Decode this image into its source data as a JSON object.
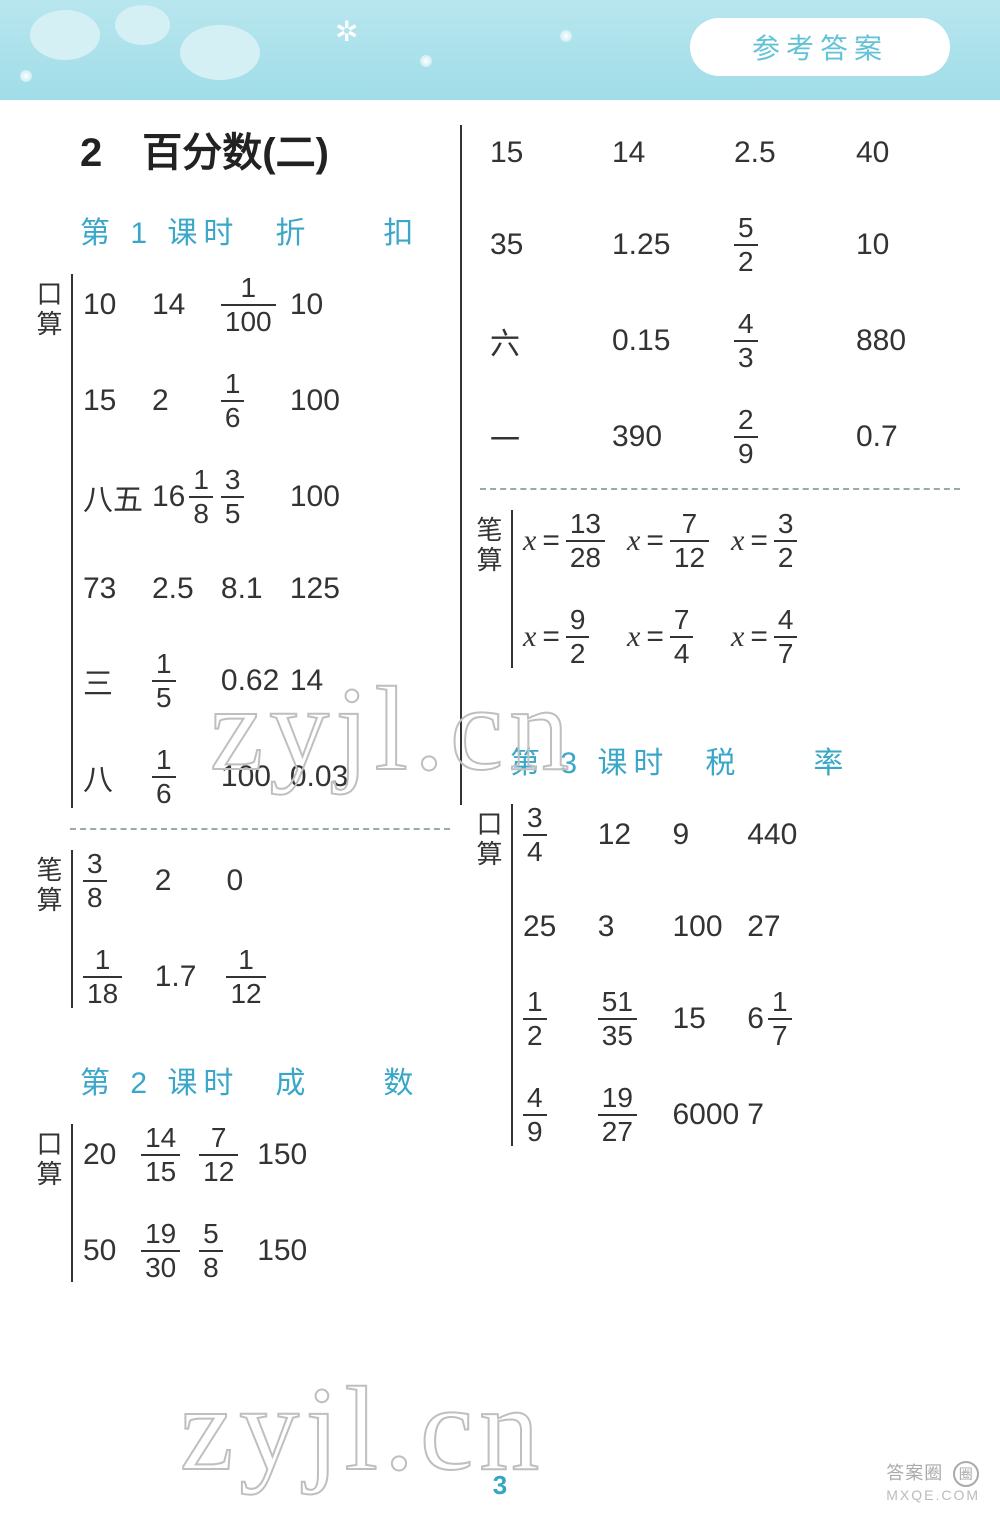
{
  "header": {
    "pill_label": "参考答案",
    "band_bg_top": "#b8e6ee",
    "band_bg_bottom": "#a0dde8",
    "pill_bg": "#ffffff",
    "pill_text_color": "#61c3d5"
  },
  "chapter_title": "2　百分数(二)",
  "labels": {
    "kousuan": "口算",
    "bisuan": "笔算"
  },
  "lesson1": {
    "title": "第 1 课时　折　　扣",
    "kousuan_rows": [
      [
        "10",
        "14",
        {
          "frac": [
            1,
            100
          ]
        },
        "10"
      ],
      [
        "15",
        "2",
        {
          "frac": [
            1,
            6
          ]
        },
        "100"
      ],
      [
        "八五",
        {
          "mixed": [
            16,
            1,
            8
          ]
        },
        {
          "frac": [
            3,
            5
          ]
        },
        "100"
      ],
      [
        "73",
        "2.5",
        "8.1",
        "125"
      ],
      [
        "三",
        {
          "frac": [
            1,
            5
          ]
        },
        "0.62",
        "14"
      ],
      [
        "八",
        {
          "frac": [
            1,
            6
          ]
        },
        "100",
        "0.03"
      ]
    ],
    "bisuan_rows": [
      [
        {
          "frac": [
            3,
            8
          ]
        },
        "2",
        "0"
      ],
      [
        {
          "frac": [
            1,
            18
          ]
        },
        "1.7",
        {
          "frac": [
            1,
            12
          ]
        }
      ]
    ]
  },
  "lesson2": {
    "title": "第 2 课时　成　　数",
    "kousuan_left_rows": [
      [
        "20",
        {
          "frac": [
            14,
            15
          ]
        },
        {
          "frac": [
            7,
            12
          ]
        },
        "150"
      ],
      [
        "50",
        {
          "frac": [
            19,
            30
          ]
        },
        {
          "frac": [
            5,
            8
          ]
        },
        "150"
      ]
    ],
    "kousuan_right_rows": [
      [
        "15",
        "14",
        "2.5",
        "40"
      ],
      [
        "35",
        "1.25",
        {
          "frac": [
            5,
            2
          ]
        },
        "10"
      ],
      [
        "六",
        "0.15",
        {
          "frac": [
            4,
            3
          ]
        },
        "880"
      ],
      [
        "一",
        "390",
        {
          "frac": [
            2,
            9
          ]
        },
        "0.7"
      ]
    ],
    "bisuan_rows": [
      [
        {
          "eq": [
            "x",
            {
              "frac": [
                13,
                28
              ]
            }
          ]
        },
        {
          "eq": [
            "x",
            {
              "frac": [
                7,
                12
              ]
            }
          ]
        },
        {
          "eq": [
            "x",
            {
              "frac": [
                3,
                2
              ]
            }
          ]
        }
      ],
      [
        {
          "eq": [
            "x",
            {
              "frac": [
                9,
                2
              ]
            }
          ]
        },
        {
          "eq": [
            "x",
            {
              "frac": [
                7,
                4
              ]
            }
          ]
        },
        {
          "eq": [
            "x",
            {
              "frac": [
                4,
                7
              ]
            }
          ]
        }
      ]
    ]
  },
  "lesson3": {
    "title": "第 3 课时　税　　率",
    "kousuan_rows": [
      [
        {
          "frac": [
            3,
            4
          ]
        },
        "12",
        "9",
        "440"
      ],
      [
        "25",
        "3",
        "100",
        "27"
      ],
      [
        {
          "frac": [
            1,
            2
          ]
        },
        {
          "frac": [
            51,
            35
          ]
        },
        "15",
        {
          "mixed": [
            6,
            1,
            7
          ]
        }
      ],
      [
        {
          "frac": [
            4,
            9
          ]
        },
        {
          "frac": [
            19,
            27
          ]
        },
        "6000",
        "7"
      ]
    ]
  },
  "page_number": "3",
  "watermarks": {
    "text": "zyjl.cn",
    "logo_line1": "答案圈",
    "logo_line2": "MXQE.COM"
  },
  "colors": {
    "lesson_title": "#3aa7c8",
    "body_text": "#333333",
    "divider": "#333333",
    "dash": "#99aaaa",
    "page_number": "#33a6c2",
    "wm_stroke": "#bfbfbf"
  }
}
